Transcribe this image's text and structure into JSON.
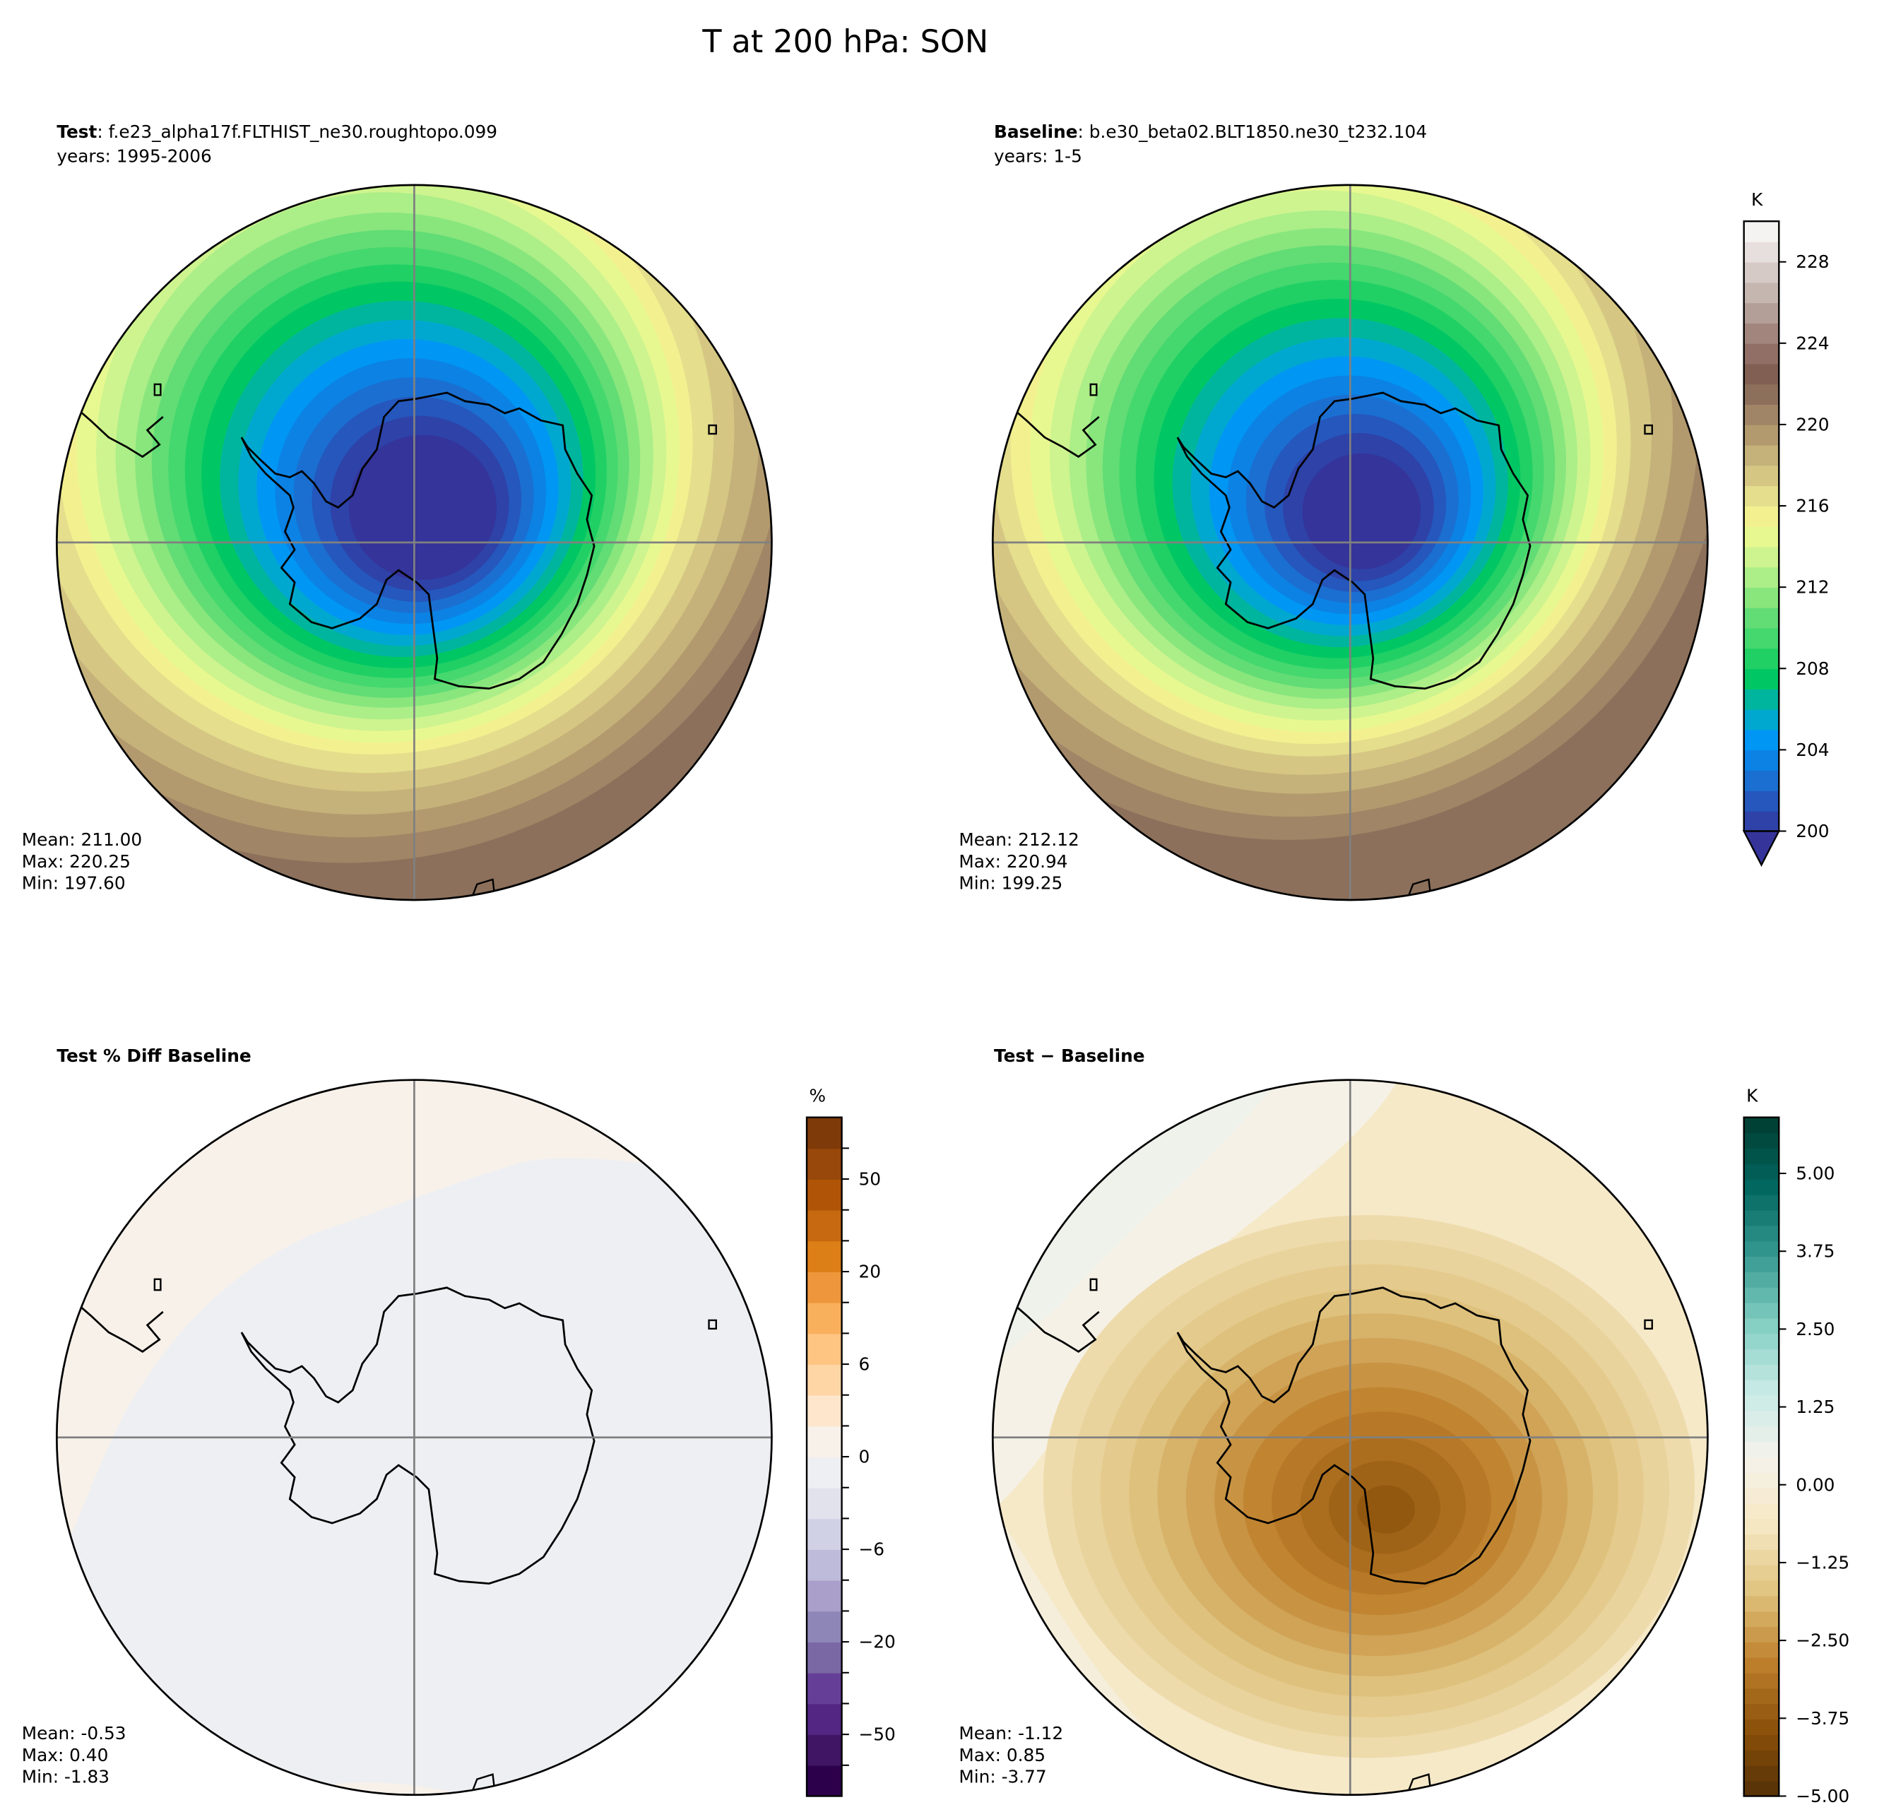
{
  "chart_data": {
    "type": "contour-map",
    "title": "T at 200 hPa: SON",
    "panels": [
      {
        "id": "test",
        "label_bold": "Test",
        "label_rest": ": f.e23_alpha17f.FLTHIST_ne30.roughtopo.099",
        "years": "years: 1995-2006",
        "stats": {
          "mean": "Mean: 211.00",
          "max": "Max: 220.25",
          "min": "Min: 197.60"
        },
        "min_value": 197.6,
        "max_value": 220.25
      },
      {
        "id": "baseline",
        "label_bold": "Baseline",
        "label_rest": ": b.e30_beta02.BLT1850.ne30_t232.104",
        "years": "years: 1-5",
        "stats": {
          "mean": "Mean: 212.12",
          "max": "Max: 220.94",
          "min": "Min: 199.25"
        },
        "min_value": 199.25,
        "max_value": 220.94
      },
      {
        "id": "pctdiff",
        "label_bold": "Test % Diff Baseline",
        "label_rest": "",
        "years": "",
        "stats": {
          "mean": "Mean: -0.53",
          "max": "Max:  0.40",
          "min": "Min: -1.83"
        },
        "min_value": -1.83,
        "max_value": 0.4
      },
      {
        "id": "diff",
        "label_bold": "Test − Baseline",
        "label_rest": "",
        "years": "",
        "stats": {
          "mean": "Mean: -1.12",
          "max": "Max:  0.85",
          "min": "Min: -3.77"
        },
        "min_value": -3.77,
        "max_value": 0.85
      }
    ],
    "colorbars": [
      {
        "id": "temperature",
        "unit": "K",
        "range": [
          200,
          230
        ],
        "extend": "min",
        "ticks": [
          200,
          204,
          208,
          212,
          216,
          220,
          224,
          228
        ],
        "tick_labels": [
          "200",
          "204",
          "208",
          "212",
          "216",
          "220",
          "224",
          "228"
        ],
        "colors_bottom_to_top": [
          "#34349a",
          "#2e42a8",
          "#2557bd",
          "#1b6fd1",
          "#0b82e4",
          "#0096f4",
          "#00a8d0",
          "#00b59e",
          "#00c764",
          "#20d065",
          "#44d86e",
          "#62dc75",
          "#88e67d",
          "#acee88",
          "#cef48f",
          "#e8f890",
          "#f3f090",
          "#e4de8d",
          "#d5c783",
          "#c5b27a",
          "#b39a6e",
          "#a08566",
          "#8c705b",
          "#825f53",
          "#926f66",
          "#a2857d",
          "#b49f98",
          "#c5b6b0",
          "#d6cac7",
          "#e7dfdd",
          "#f4f3f2"
        ]
      },
      {
        "id": "percent",
        "unit": "%",
        "levels": [
          -100,
          -75,
          -50,
          -40,
          -30,
          -20,
          -15,
          -10,
          -6,
          -4,
          -2,
          0,
          2,
          4,
          6,
          10,
          15,
          20,
          30,
          40,
          50,
          75,
          100
        ],
        "tick_labels": {
          "-50": "−50",
          "-20": "−20",
          "-6": "−6",
          "0": "0",
          "6": "6",
          "20": "20",
          "50": "50"
        },
        "colors_bottom_to_top": [
          "#2d004b",
          "#3f1564",
          "#522682",
          "#653f97",
          "#7a68a5",
          "#8e86b6",
          "#a99fca",
          "#bebad9",
          "#d1d1e5",
          "#e2e2ed",
          "#eeeff3",
          "#f7f1ea",
          "#fde6cc",
          "#fed6a6",
          "#fdc482",
          "#f9b05c",
          "#ed963c",
          "#dc7f16",
          "#c66910",
          "#b05508",
          "#97480a",
          "#7e3a08"
        ]
      },
      {
        "id": "difference",
        "unit": "K",
        "range": [
          -5.0,
          5.9
        ],
        "ticks": [
          -5.0,
          -3.75,
          -2.5,
          -1.25,
          0.0,
          1.25,
          2.5,
          3.75,
          5.0
        ],
        "tick_labels": [
          "−5.00",
          "−3.75",
          "−2.50",
          "−1.25",
          "0.00",
          "1.25",
          "2.50",
          "3.75",
          "5.00"
        ],
        "color_stops_bottom_to_top": [
          "#543005",
          "#8c510a",
          "#bf812d",
          "#dfc27d",
          "#f6e8c3",
          "#f5f2ec",
          "#c7eae5",
          "#80cdc1",
          "#35978f",
          "#01665e",
          "#003c30"
        ]
      }
    ]
  }
}
